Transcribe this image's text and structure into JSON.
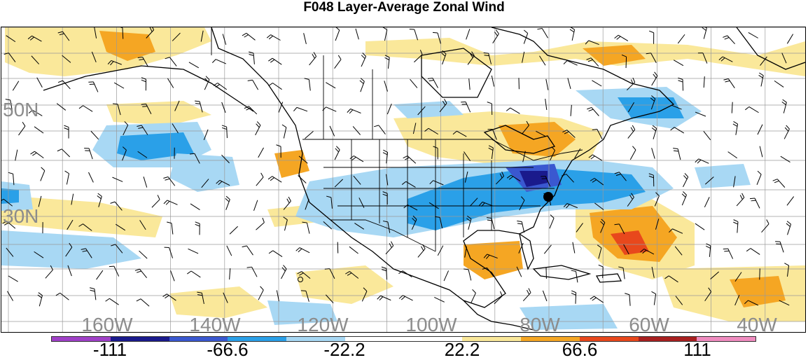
{
  "title": "F048 Layer-Average Zonal Wind",
  "lat_labels": [
    "50N",
    "30N"
  ],
  "lon_labels": [
    "160W",
    "140W",
    "120W",
    "100W",
    "80W",
    "60W",
    "40W"
  ],
  "colorbar": {
    "colors": [
      "#a040c8",
      "#1a1a8c",
      "#3a58d0",
      "#2aa0e8",
      "#a8d8f4",
      "#ffffff",
      "#ffffff",
      "#fae89a",
      "#f5a623",
      "#e8481c",
      "#a82020",
      "#f08cc0"
    ],
    "labels": [
      "-111",
      "-66.6",
      "-22.2",
      "22.2",
      "66.6",
      "111"
    ]
  },
  "map_colors": {
    "land_outline": "#000000",
    "grid": "#9a9a9a",
    "positive_light": "#fae89a",
    "positive_mid": "#f5a623",
    "positive_strong": "#e8481c",
    "negative_light": "#a8d8f4",
    "negative_mid": "#2aa0e8",
    "negative_strong": "#3a58d0",
    "negative_extreme": "#1a1a8c"
  },
  "markers": [
    "black-dot"
  ]
}
